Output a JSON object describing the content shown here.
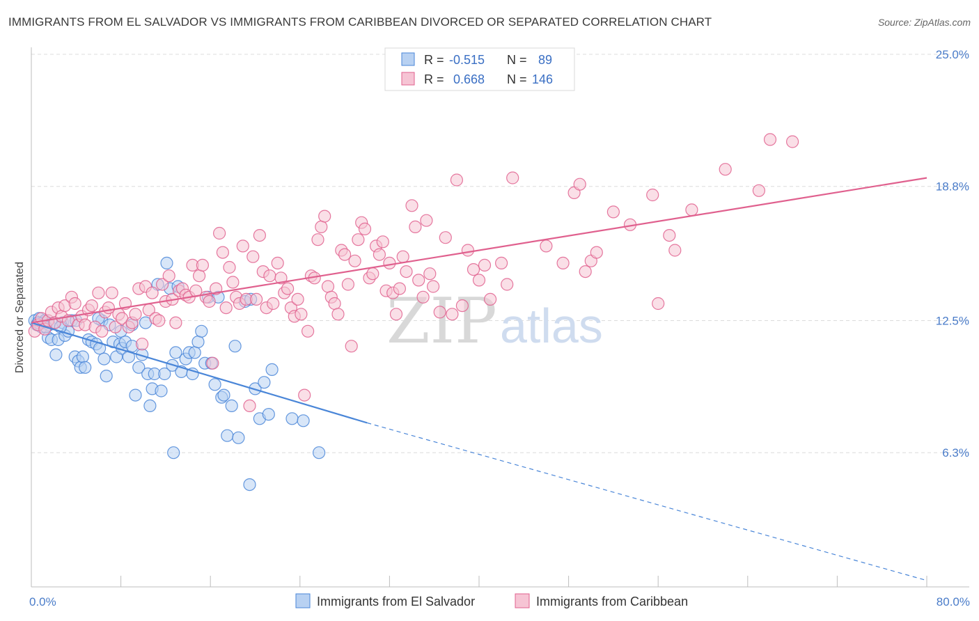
{
  "title": "IMMIGRANTS FROM EL SALVADOR VS IMMIGRANTS FROM CARIBBEAN DIVORCED OR SEPARATED CORRELATION CHART",
  "source": "Source: ZipAtlas.com",
  "watermark": {
    "zip": "ZIP",
    "atlas": "atlas"
  },
  "colors": {
    "blue": "#4a86d8",
    "blue_fill": "#b8d1f2",
    "pink": "#e0608e",
    "pink_fill": "#f6c4d4",
    "axis_text": "#4a7cc9"
  },
  "stats": {
    "r_label": "R =",
    "n_label": "N =",
    "blue": {
      "r": "-0.515",
      "n": "89"
    },
    "pink": {
      "r": "0.668",
      "n": "146"
    }
  },
  "chart_data": {
    "type": "scatter",
    "title": "IMMIGRANTS FROM EL SALVADOR VS IMMIGRANTS FROM CARIBBEAN DIVORCED OR SEPARATED CORRELATION CHART",
    "xlabel": "",
    "ylabel": "Divorced or Separated",
    "xlim": [
      0,
      80
    ],
    "ylim": [
      0,
      25
    ],
    "x_tick_labels": [
      "0.0%",
      "80.0%"
    ],
    "y_ticks": [
      6.3,
      12.5,
      18.8,
      25.0
    ],
    "y_tick_labels": [
      "6.3%",
      "12.5%",
      "18.8%",
      "25.0%"
    ],
    "grid": true,
    "legend_position": "bottom",
    "series": [
      {
        "name": "Immigrants from El Salvador",
        "color": "#4a86d8",
        "trend": {
          "x0": 0,
          "y0": 12.4,
          "x1": 30,
          "y1": 7.7,
          "dashed_to_x": 80,
          "dashed_to_y": 0.3
        },
        "points": [
          [
            0.3,
            12.5
          ],
          [
            0.5,
            12.3
          ],
          [
            0.7,
            12.6
          ],
          [
            0.9,
            12.2
          ],
          [
            1.0,
            12.4
          ],
          [
            1.2,
            12.5
          ],
          [
            1.5,
            11.7
          ],
          [
            1.6,
            12.3
          ],
          [
            1.8,
            11.6
          ],
          [
            2.0,
            12.4
          ],
          [
            2.2,
            10.9
          ],
          [
            2.4,
            11.6
          ],
          [
            2.8,
            12.4
          ],
          [
            3.0,
            11.8
          ],
          [
            3.3,
            12.0
          ],
          [
            3.6,
            12.5
          ],
          [
            3.9,
            10.8
          ],
          [
            4.2,
            10.6
          ],
          [
            4.4,
            10.3
          ],
          [
            4.6,
            10.8
          ],
          [
            4.8,
            10.3
          ],
          [
            5.1,
            11.6
          ],
          [
            5.4,
            11.5
          ],
          [
            5.8,
            11.4
          ],
          [
            6.1,
            11.2
          ],
          [
            6.3,
            12.5
          ],
          [
            6.5,
            10.7
          ],
          [
            6.7,
            9.9
          ],
          [
            7.0,
            12.3
          ],
          [
            7.3,
            11.5
          ],
          [
            7.6,
            10.8
          ],
          [
            7.9,
            11.4
          ],
          [
            8.1,
            11.2
          ],
          [
            8.4,
            11.5
          ],
          [
            8.7,
            10.8
          ],
          [
            9.0,
            11.3
          ],
          [
            9.3,
            9.0
          ],
          [
            9.6,
            10.3
          ],
          [
            9.9,
            10.9
          ],
          [
            10.2,
            12.4
          ],
          [
            10.4,
            10.0
          ],
          [
            10.6,
            8.5
          ],
          [
            10.8,
            9.3
          ],
          [
            11.0,
            10.0
          ],
          [
            11.3,
            14.2
          ],
          [
            11.6,
            9.2
          ],
          [
            11.9,
            10.0
          ],
          [
            12.1,
            15.2
          ],
          [
            12.4,
            14.0
          ],
          [
            12.6,
            10.4
          ],
          [
            12.9,
            11.0
          ],
          [
            13.1,
            14.1
          ],
          [
            13.4,
            10.1
          ],
          [
            13.8,
            10.7
          ],
          [
            14.1,
            11.0
          ],
          [
            14.4,
            10.0
          ],
          [
            14.6,
            11.0
          ],
          [
            14.9,
            11.5
          ],
          [
            15.2,
            12.0
          ],
          [
            15.5,
            10.5
          ],
          [
            15.8,
            13.6
          ],
          [
            16.1,
            10.5
          ],
          [
            16.4,
            9.5
          ],
          [
            16.7,
            13.6
          ],
          [
            17.0,
            8.9
          ],
          [
            17.2,
            9.0
          ],
          [
            17.5,
            7.1
          ],
          [
            17.9,
            8.5
          ],
          [
            18.2,
            11.3
          ],
          [
            18.5,
            7.0
          ],
          [
            19.1,
            13.4
          ],
          [
            19.6,
            13.5
          ],
          [
            20.0,
            9.3
          ],
          [
            20.4,
            7.9
          ],
          [
            20.8,
            9.6
          ],
          [
            21.2,
            8.1
          ],
          [
            21.5,
            10.2
          ],
          [
            23.3,
            7.9
          ],
          [
            24.3,
            7.8
          ],
          [
            25.7,
            6.3
          ],
          [
            19.5,
            4.8
          ],
          [
            12.7,
            6.3
          ],
          [
            9.0,
            12.3
          ],
          [
            6.0,
            12.6
          ],
          [
            4.0,
            12.5
          ],
          [
            8.0,
            12.0
          ],
          [
            2.6,
            12.2
          ],
          [
            1.3,
            12.2
          ],
          [
            0.6,
            12.4
          ]
        ]
      },
      {
        "name": "Immigrants from Caribbean",
        "color": "#e0608e",
        "trend": {
          "x0": 0,
          "y0": 12.4,
          "x1": 80,
          "y1": 19.2
        },
        "points": [
          [
            0.3,
            12.0
          ],
          [
            0.6,
            12.3
          ],
          [
            0.9,
            12.6
          ],
          [
            1.2,
            12.1
          ],
          [
            1.5,
            12.5
          ],
          [
            1.8,
            12.9
          ],
          [
            2.1,
            12.4
          ],
          [
            2.4,
            13.1
          ],
          [
            2.7,
            12.7
          ],
          [
            3.0,
            13.2
          ],
          [
            3.3,
            12.5
          ],
          [
            3.6,
            13.6
          ],
          [
            3.9,
            13.3
          ],
          [
            4.2,
            12.3
          ],
          [
            4.5,
            12.7
          ],
          [
            4.8,
            12.3
          ],
          [
            5.1,
            13.0
          ],
          [
            5.4,
            13.2
          ],
          [
            5.7,
            12.2
          ],
          [
            6.0,
            13.8
          ],
          [
            6.3,
            12.0
          ],
          [
            6.6,
            12.9
          ],
          [
            6.9,
            13.1
          ],
          [
            7.2,
            13.8
          ],
          [
            7.5,
            12.2
          ],
          [
            7.8,
            12.8
          ],
          [
            8.1,
            12.6
          ],
          [
            8.4,
            13.3
          ],
          [
            8.7,
            12.2
          ],
          [
            9.0,
            12.4
          ],
          [
            9.3,
            12.8
          ],
          [
            9.6,
            14.0
          ],
          [
            9.9,
            11.4
          ],
          [
            10.2,
            14.1
          ],
          [
            10.5,
            13.0
          ],
          [
            10.8,
            13.8
          ],
          [
            11.1,
            12.6
          ],
          [
            11.4,
            12.5
          ],
          [
            11.7,
            14.2
          ],
          [
            12.0,
            13.4
          ],
          [
            12.3,
            14.6
          ],
          [
            12.6,
            13.5
          ],
          [
            12.9,
            12.4
          ],
          [
            13.2,
            13.9
          ],
          [
            13.5,
            14.0
          ],
          [
            13.8,
            13.7
          ],
          [
            14.1,
            13.6
          ],
          [
            14.4,
            15.1
          ],
          [
            14.7,
            13.9
          ],
          [
            15.0,
            14.6
          ],
          [
            15.3,
            15.1
          ],
          [
            15.6,
            13.6
          ],
          [
            15.9,
            13.4
          ],
          [
            16.2,
            10.5
          ],
          [
            16.5,
            14.0
          ],
          [
            16.8,
            16.6
          ],
          [
            17.1,
            15.7
          ],
          [
            17.4,
            13.1
          ],
          [
            17.7,
            15.0
          ],
          [
            18.0,
            14.3
          ],
          [
            18.3,
            13.6
          ],
          [
            18.6,
            13.3
          ],
          [
            18.9,
            16.0
          ],
          [
            19.2,
            13.5
          ],
          [
            19.5,
            8.5
          ],
          [
            19.8,
            15.5
          ],
          [
            20.1,
            13.5
          ],
          [
            20.4,
            16.5
          ],
          [
            20.7,
            14.8
          ],
          [
            21.0,
            13.1
          ],
          [
            21.3,
            14.6
          ],
          [
            21.6,
            13.3
          ],
          [
            22.0,
            15.2
          ],
          [
            22.3,
            14.5
          ],
          [
            22.6,
            13.8
          ],
          [
            22.9,
            14.0
          ],
          [
            23.2,
            13.1
          ],
          [
            23.5,
            12.7
          ],
          [
            23.8,
            13.5
          ],
          [
            24.1,
            12.8
          ],
          [
            24.4,
            9.0
          ],
          [
            24.7,
            12.0
          ],
          [
            25.0,
            14.6
          ],
          [
            25.3,
            14.5
          ],
          [
            25.6,
            16.3
          ],
          [
            25.9,
            16.9
          ],
          [
            26.2,
            17.4
          ],
          [
            26.5,
            14.1
          ],
          [
            26.8,
            13.6
          ],
          [
            27.1,
            13.3
          ],
          [
            27.4,
            12.8
          ],
          [
            27.7,
            15.8
          ],
          [
            28.0,
            15.6
          ],
          [
            28.3,
            14.2
          ],
          [
            28.6,
            11.3
          ],
          [
            28.9,
            15.3
          ],
          [
            29.2,
            16.3
          ],
          [
            29.5,
            17.1
          ],
          [
            29.8,
            16.8
          ],
          [
            30.2,
            14.5
          ],
          [
            30.5,
            14.7
          ],
          [
            30.8,
            16.0
          ],
          [
            31.1,
            15.6
          ],
          [
            31.4,
            16.2
          ],
          [
            31.7,
            13.9
          ],
          [
            32.0,
            15.2
          ],
          [
            32.3,
            13.8
          ],
          [
            32.6,
            12.8
          ],
          [
            32.9,
            14.0
          ],
          [
            33.2,
            15.5
          ],
          [
            33.5,
            14.8
          ],
          [
            34.0,
            17.9
          ],
          [
            34.3,
            16.9
          ],
          [
            34.6,
            14.4
          ],
          [
            35.0,
            13.6
          ],
          [
            35.3,
            17.2
          ],
          [
            35.6,
            14.7
          ],
          [
            35.9,
            14.1
          ],
          [
            36.5,
            12.9
          ],
          [
            37.0,
            16.4
          ],
          [
            37.6,
            12.8
          ],
          [
            38.0,
            19.1
          ],
          [
            38.5,
            13.2
          ],
          [
            39.0,
            15.8
          ],
          [
            39.5,
            14.9
          ],
          [
            40.0,
            14.4
          ],
          [
            40.5,
            15.1
          ],
          [
            41.0,
            13.5
          ],
          [
            42.0,
            15.2
          ],
          [
            42.5,
            14.2
          ],
          [
            43.0,
            19.2
          ],
          [
            46.0,
            16.0
          ],
          [
            47.5,
            15.2
          ],
          [
            48.5,
            18.5
          ],
          [
            49.0,
            18.9
          ],
          [
            49.5,
            14.8
          ],
          [
            50.0,
            15.3
          ],
          [
            50.5,
            15.7
          ],
          [
            52.0,
            17.6
          ],
          [
            53.5,
            17.0
          ],
          [
            55.5,
            18.4
          ],
          [
            56.0,
            13.3
          ],
          [
            57.0,
            16.5
          ],
          [
            57.5,
            15.8
          ],
          [
            59.0,
            17.7
          ],
          [
            62.0,
            19.6
          ],
          [
            65.0,
            18.6
          ],
          [
            66.0,
            21.0
          ],
          [
            68.0,
            20.9
          ]
        ]
      }
    ]
  },
  "legend": {
    "blue_label": "Immigrants from El Salvador",
    "pink_label": "Immigrants from Caribbean"
  }
}
